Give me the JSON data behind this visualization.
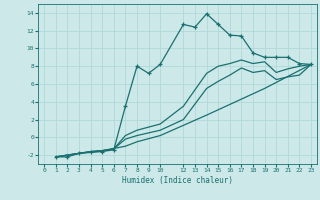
{
  "xlabel": "Humidex (Indice chaleur)",
  "background_color": "#cce8e8",
  "line_color": "#1a7070",
  "grid_color": "#b0d8d8",
  "ylim": [
    -3,
    15
  ],
  "xlim": [
    -0.5,
    23.5
  ],
  "yticks": [
    -2,
    0,
    2,
    4,
    6,
    8,
    10,
    12,
    14
  ],
  "xticks": [
    0,
    1,
    2,
    3,
    4,
    5,
    6,
    7,
    8,
    9,
    10,
    12,
    13,
    14,
    15,
    16,
    17,
    18,
    19,
    20,
    21,
    22,
    23
  ],
  "line1_x": [
    1,
    2,
    3,
    4,
    5,
    6,
    7,
    8,
    9,
    10,
    12,
    13,
    14,
    15,
    16,
    17,
    18,
    19,
    20,
    21,
    22,
    23
  ],
  "line1_y": [
    -2.2,
    -2.2,
    -1.8,
    -1.7,
    -1.6,
    -1.4,
    3.5,
    8.0,
    7.2,
    8.2,
    12.7,
    12.4,
    13.9,
    12.7,
    11.5,
    11.4,
    9.5,
    9.0,
    9.0,
    9.0,
    8.3,
    8.2
  ],
  "line2_x": [
    1,
    3,
    4,
    5,
    6,
    7,
    8,
    10,
    12,
    14,
    15,
    16,
    17,
    18,
    19,
    20,
    21,
    22,
    23
  ],
  "line2_y": [
    -2.2,
    -1.8,
    -1.6,
    -1.5,
    -1.3,
    0.2,
    0.8,
    1.5,
    3.5,
    7.2,
    8.0,
    8.3,
    8.7,
    8.3,
    8.5,
    7.3,
    7.7,
    8.0,
    8.2
  ],
  "line3_x": [
    1,
    3,
    4,
    5,
    6,
    7,
    8,
    10,
    12,
    14,
    15,
    16,
    17,
    18,
    19,
    20,
    21,
    22,
    23
  ],
  "line3_y": [
    -2.2,
    -1.8,
    -1.6,
    -1.5,
    -1.3,
    -0.2,
    0.2,
    0.8,
    2.0,
    5.5,
    6.3,
    7.0,
    7.8,
    7.3,
    7.5,
    6.5,
    6.8,
    7.0,
    8.2
  ],
  "line4_x": [
    1,
    3,
    5,
    7,
    8,
    10,
    14,
    19,
    23
  ],
  "line4_y": [
    -2.2,
    -1.8,
    -1.5,
    -1.0,
    -0.5,
    0.2,
    2.5,
    5.5,
    8.2
  ]
}
